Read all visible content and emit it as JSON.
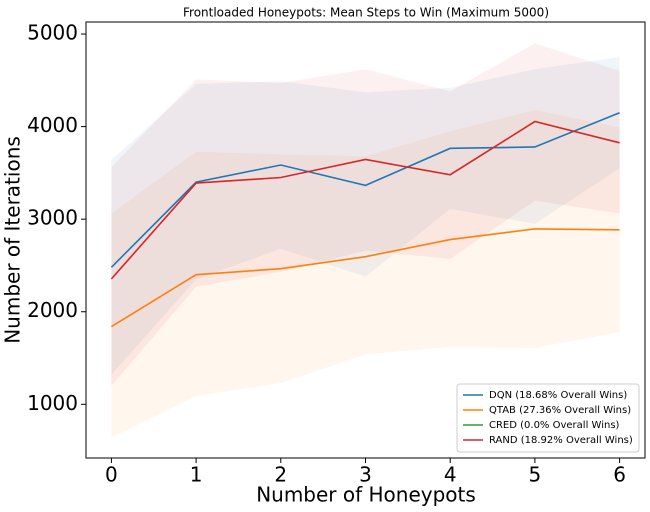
{
  "chart_data": {
    "type": "line",
    "title": "Frontloaded Honeypots: Mean Steps to Win (Maximum 5000)",
    "xlabel": "Number of Honeypots",
    "ylabel": "Number of Iterations",
    "x": [
      0,
      1,
      2,
      3,
      4,
      5,
      6
    ],
    "xlim": [
      -0.3,
      6.3
    ],
    "ylim": [
      420,
      5130
    ],
    "xticks": [
      0,
      1,
      2,
      3,
      4,
      5,
      6
    ],
    "yticks": [
      1000,
      2000,
      3000,
      4000,
      5000
    ],
    "legend": "lower right",
    "band_opacity": 0.07,
    "series": [
      {
        "name": "DQN (18.68% Overall Wins)",
        "color": "#1f77b4",
        "values": [
          2480,
          3400,
          3585,
          3365,
          3765,
          3780,
          4150
        ],
        "upper": [
          3640,
          4460,
          4490,
          4370,
          4420,
          4620,
          4750
        ],
        "lower": [
          1320,
          2350,
          2680,
          2380,
          3110,
          2950,
          3550
        ]
      },
      {
        "name": "QTAB (27.36% Overall Wins)",
        "color": "#ff7f0e",
        "values": [
          1840,
          2400,
          2465,
          2595,
          2780,
          2895,
          2885
        ],
        "upper": [
          3060,
          3730,
          3700,
          3680,
          3950,
          4180,
          3990
        ],
        "lower": [
          640,
          1090,
          1230,
          1540,
          1620,
          1610,
          1780
        ]
      },
      {
        "name": "CRED (0.0% Overall Wins)",
        "color": "#2ca02c",
        "values": [
          null,
          null,
          null,
          null,
          null,
          null,
          null
        ],
        "upper": [
          null,
          null,
          null,
          null,
          null,
          null,
          null
        ],
        "lower": [
          null,
          null,
          null,
          null,
          null,
          null,
          null
        ]
      },
      {
        "name": "RAND (18.92% Overall Wins)",
        "color": "#d62728",
        "values": [
          2355,
          3390,
          3450,
          3645,
          3480,
          4055,
          3825
        ],
        "upper": [
          3560,
          4510,
          4470,
          4620,
          4380,
          4900,
          4600
        ],
        "lower": [
          1200,
          2270,
          2430,
          2660,
          2570,
          3200,
          3060
        ]
      }
    ]
  }
}
